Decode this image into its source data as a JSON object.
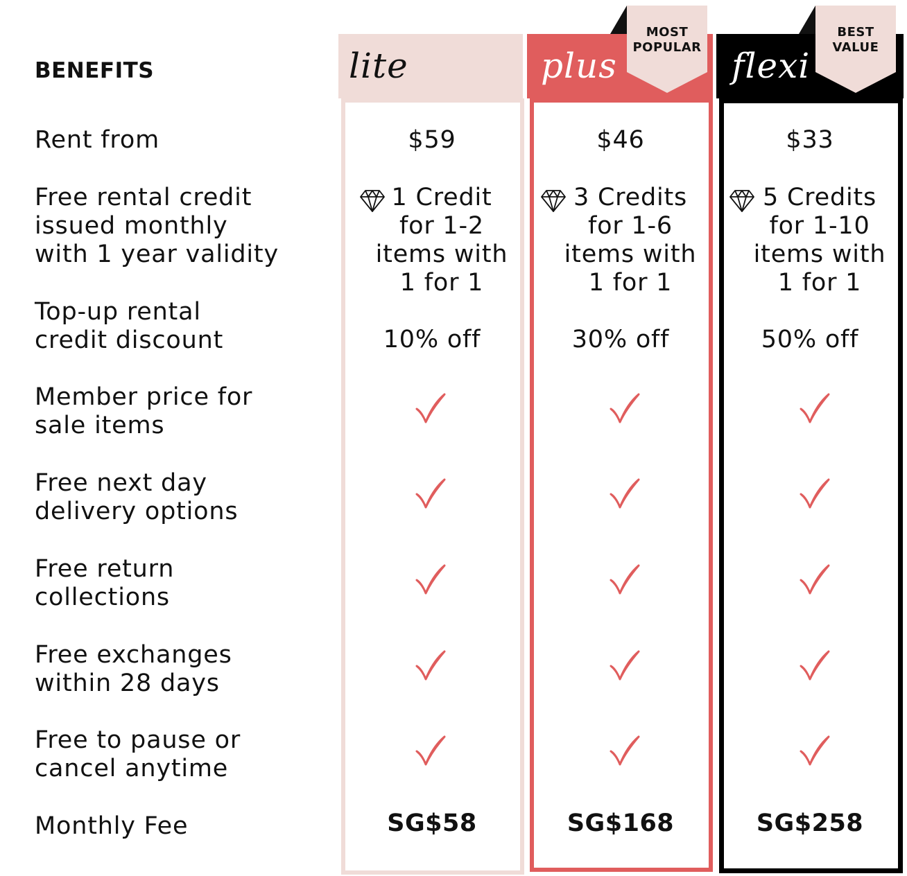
{
  "header": {
    "benefits_label": "BENEFITS"
  },
  "plans": [
    {
      "id": "lite",
      "name": "lite",
      "badge": "",
      "rent_from": "$59",
      "credit": "1 Credit\nfor 1-2\nitems with\n1 for 1",
      "topup": "10% off",
      "fee": "SG$58"
    },
    {
      "id": "plus",
      "name": "plus",
      "badge": "MOST\nPOPULAR",
      "rent_from": "$46",
      "credit": "3 Credits\nfor 1-6\nitems with\n1 for 1",
      "topup": "30% off",
      "fee": "SG$168"
    },
    {
      "id": "flexi",
      "name": "flexi",
      "badge": "BEST\nVALUE",
      "rent_from": "$33",
      "credit": "5 Credits\nfor 1-10\nitems with\n1 for 1",
      "topup": "50% off",
      "fee": "SG$258"
    }
  ],
  "benefits": [
    "Rent from",
    "Free rental credit\nissued monthly\nwith 1 year validity",
    "Top-up rental\ncredit discount",
    "Member price for\nsale items",
    "Free next day\ndelivery options",
    "Free return\ncollections",
    "Free exchanges\nwithin 28 days",
    "Free to pause or\ncancel anytime",
    "Monthly Fee"
  ],
  "icons": {
    "credit": "diamond-icon",
    "included": "checkmark-icon"
  },
  "colors": {
    "lite": "#f0dcd8",
    "plus": "#e05d5d",
    "flexi": "#000000",
    "check": "#e05d5d",
    "ribbon": "#f0dcd8"
  }
}
